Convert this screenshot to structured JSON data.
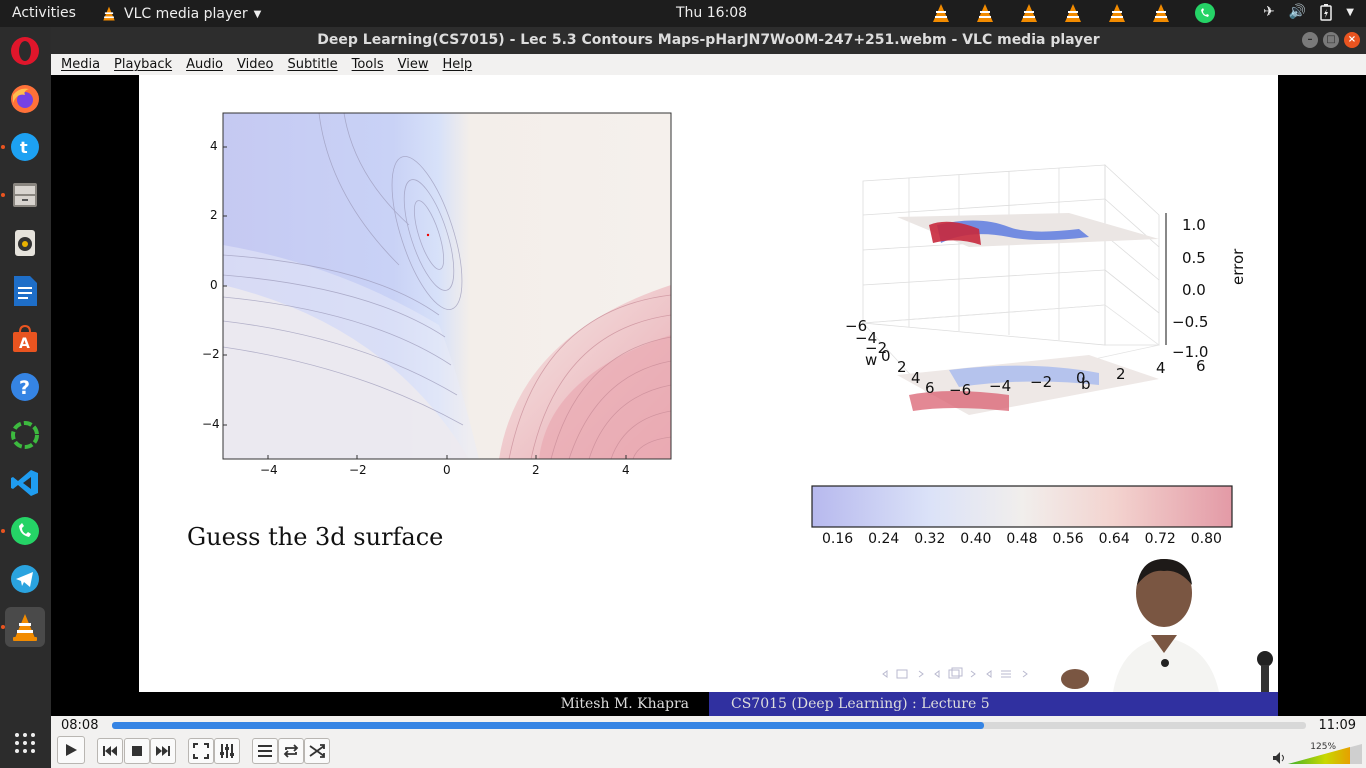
{
  "topbar": {
    "activities": "Activities",
    "app_name": "VLC media player",
    "clock": "Thu 16:08"
  },
  "window": {
    "title": "Deep Learning(CS7015) - Lec 5.3 Contours Maps-pHarJN7Wo0M-247+251.webm - VLC media player"
  },
  "menu": [
    "Media",
    "Playback",
    "Audio",
    "Video",
    "Subtitle",
    "Tools",
    "View",
    "Help"
  ],
  "slide": {
    "caption": "Guess the 3d surface",
    "footer_left": "Mitesh M. Khapra",
    "footer_right": "CS7015 (Deep Learning) : Lecture 5",
    "contour_plot": {
      "x_ticks": [
        "−4",
        "−2",
        "0",
        "2",
        "4"
      ],
      "y_ticks": [
        "4",
        "2",
        "0",
        "−2",
        "−4"
      ]
    },
    "surface_plot": {
      "z_label": "error",
      "z_ticks": [
        "1.0",
        "0.5",
        "0.0",
        "−0.5",
        "−1.0"
      ],
      "w_label": "w",
      "w_ticks": [
        "−6",
        "−4",
        "−2",
        "0",
        "2",
        "4",
        "6"
      ],
      "b_label": "b",
      "b_ticks": [
        "−6",
        "−4",
        "−2",
        "0",
        "2",
        "4",
        "6"
      ]
    },
    "colorbar": {
      "ticks": [
        "0.16",
        "0.24",
        "0.32",
        "0.40",
        "0.48",
        "0.56",
        "0.64",
        "0.72",
        "0.80"
      ],
      "low_color": "#b7b9ee",
      "mid_color": "#f1eeec",
      "high_color": "#e39aa6"
    }
  },
  "player": {
    "elapsed": "08:08",
    "total": "11:09",
    "progress": 0.73,
    "volume": "125%",
    "accent": "#3584e4"
  }
}
